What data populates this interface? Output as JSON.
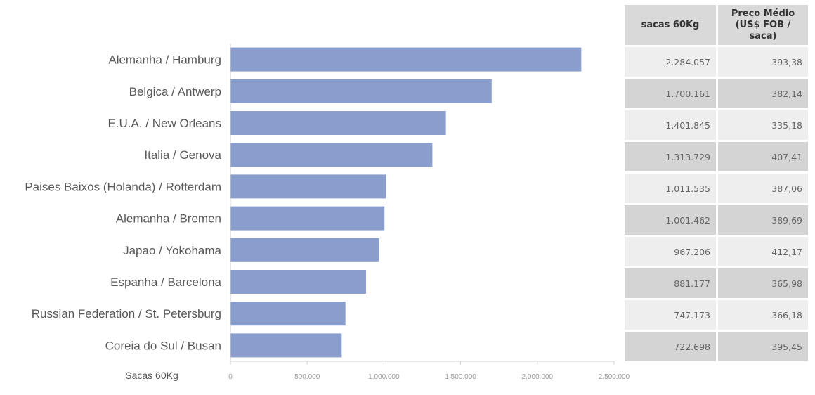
{
  "chart_data": {
    "type": "bar",
    "orientation": "horizontal",
    "categories": [
      "Alemanha / Hamburg",
      "Belgica / Antwerp",
      "E.U.A. / New Orleans",
      "Italia / Genova",
      "Paises Baixos (Holanda) / Rotterdam",
      "Alemanha / Bremen",
      "Japao / Yokohama",
      "Espanha / Barcelona",
      "Russian Federation / St. Petersburg",
      "Coreia do Sul  / Busan"
    ],
    "values": [
      2284057,
      1700161,
      1401845,
      1313729,
      1011535,
      1001462,
      967206,
      881177,
      747173,
      722698
    ],
    "xlabel": "Sacas 60Kg",
    "xlim": [
      0,
      2500000
    ],
    "ticks": [
      0,
      500000,
      1000000,
      1500000,
      2000000,
      2500000
    ],
    "tick_labels": [
      "0",
      "500.000",
      "1.000.000",
      "1.500.000",
      "2.000.000",
      "2.500.000"
    ],
    "bar_color": "#8a9ecd",
    "grid": false
  },
  "table": {
    "headers": {
      "sacas": "sacas 60Kg",
      "preco_line1": "Preço Médio",
      "preco_line2": "(US$ FOB / saca)"
    },
    "rows": [
      {
        "sacas": "2.284.057",
        "preco": "393,38"
      },
      {
        "sacas": "1.700.161",
        "preco": "382,14"
      },
      {
        "sacas": "1.401.845",
        "preco": "335,18"
      },
      {
        "sacas": "1.313.729",
        "preco": "407,41"
      },
      {
        "sacas": "1.011.535",
        "preco": "387,06"
      },
      {
        "sacas": "1.001.462",
        "preco": "389,69"
      },
      {
        "sacas": "967.206",
        "preco": "412,17"
      },
      {
        "sacas": "881.177",
        "preco": "365,98"
      },
      {
        "sacas": "747.173",
        "preco": "366,18"
      },
      {
        "sacas": "722.698",
        "preco": "395,45"
      }
    ]
  }
}
